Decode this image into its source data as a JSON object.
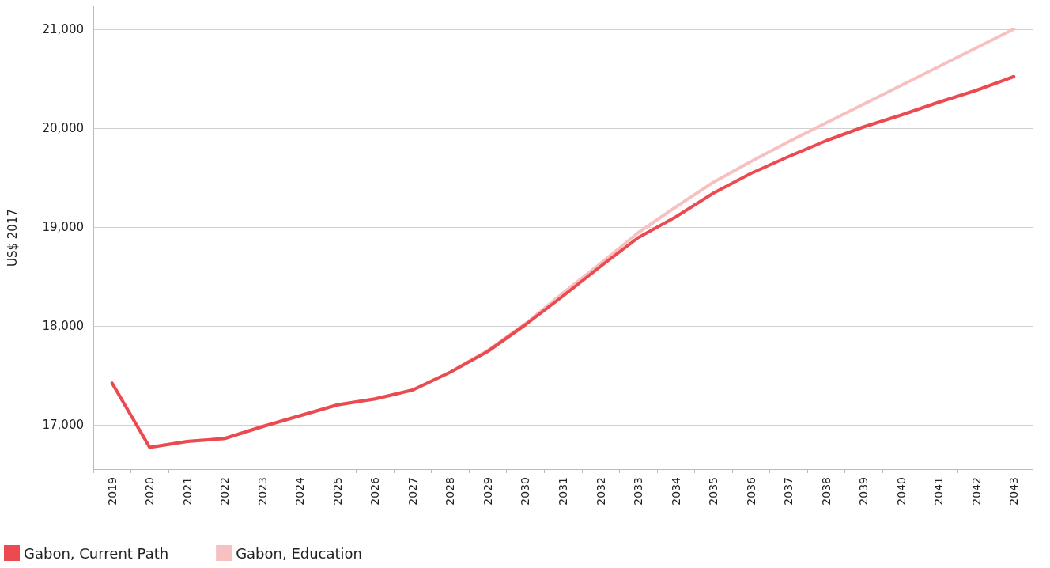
{
  "chart_data": {
    "type": "line",
    "ylabel": "US$ 2017",
    "categories": [
      "2019",
      "2020",
      "2021",
      "2022",
      "2023",
      "2024",
      "2025",
      "2026",
      "2027",
      "2028",
      "2029",
      "2030",
      "2031",
      "2032",
      "2033",
      "2034",
      "2035",
      "2036",
      "2037",
      "2038",
      "2039",
      "2040",
      "2041",
      "2042",
      "2043"
    ],
    "series": [
      {
        "name": "Gabon, Current Path",
        "color": "#eb4a50",
        "values": [
          17420,
          16770,
          16830,
          16860,
          16980,
          17090,
          17200,
          17260,
          17350,
          17530,
          17740,
          18010,
          18300,
          18600,
          18890,
          19100,
          19340,
          19540,
          19710,
          19870,
          20010,
          20130,
          20260,
          20380,
          20520
        ]
      },
      {
        "name": "Gabon, Education",
        "color": "#f7c1c2",
        "values": [
          17420,
          16770,
          16830,
          16860,
          16980,
          17090,
          17200,
          17260,
          17350,
          17530,
          17750,
          18020,
          18330,
          18630,
          18940,
          19200,
          19450,
          19660,
          19860,
          20050,
          20240,
          20430,
          20620,
          20810,
          21000
        ]
      }
    ],
    "ylim": [
      16550,
      21230
    ],
    "yticks": [
      {
        "value": 17000,
        "label": "17,000"
      },
      {
        "value": 18000,
        "label": "18,000"
      },
      {
        "value": 19000,
        "label": "19,000"
      },
      {
        "value": 20000,
        "label": "20,000"
      },
      {
        "value": 21000,
        "label": "21,000"
      }
    ],
    "grid": "y",
    "legend": "bottom left",
    "marker": "none",
    "line_style": "solid"
  }
}
